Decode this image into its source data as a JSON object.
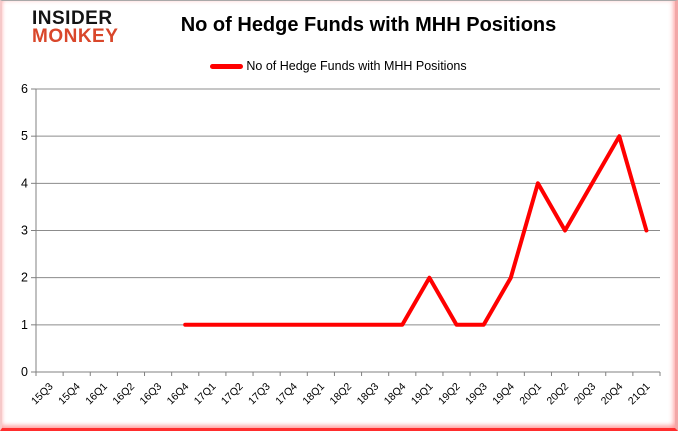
{
  "logo": {
    "line1": "INSIDER",
    "line2": "MONKEY"
  },
  "header": {
    "title": "No of Hedge Funds with MHH Positions"
  },
  "legend": {
    "label": "No of Hedge Funds with MHH Positions"
  },
  "colors": {
    "line": "#ff0000",
    "grid": "#8c8c8c",
    "axis": "#808080",
    "text": "#000000",
    "logo_black": "#141414",
    "logo_red": "#d9472b"
  },
  "chart_data": {
    "type": "line",
    "title": "No of Hedge Funds with MHH Positions",
    "xlabel": "",
    "ylabel": "",
    "ylim": [
      0,
      6
    ],
    "ytick_interval": 1,
    "yticks": [
      0,
      1,
      2,
      3,
      4,
      5,
      6
    ],
    "grid": "horizontal",
    "legend_position": "top",
    "categories": [
      "15Q3",
      "15Q4",
      "16Q1",
      "16Q2",
      "16Q3",
      "16Q4",
      "17Q1",
      "17Q2",
      "17Q3",
      "17Q4",
      "18Q1",
      "18Q2",
      "18Q3",
      "18Q4",
      "19Q1",
      "19Q2",
      "19Q3",
      "19Q4",
      "20Q1",
      "20Q2",
      "20Q3",
      "20Q4",
      "21Q1"
    ],
    "series": [
      {
        "name": "No of Hedge Funds with MHH Positions",
        "color": "#ff0000",
        "values": [
          null,
          null,
          null,
          null,
          null,
          1,
          1,
          1,
          1,
          1,
          1,
          1,
          1,
          1,
          2,
          1,
          1,
          2,
          4,
          3,
          4,
          5,
          3
        ]
      }
    ]
  }
}
